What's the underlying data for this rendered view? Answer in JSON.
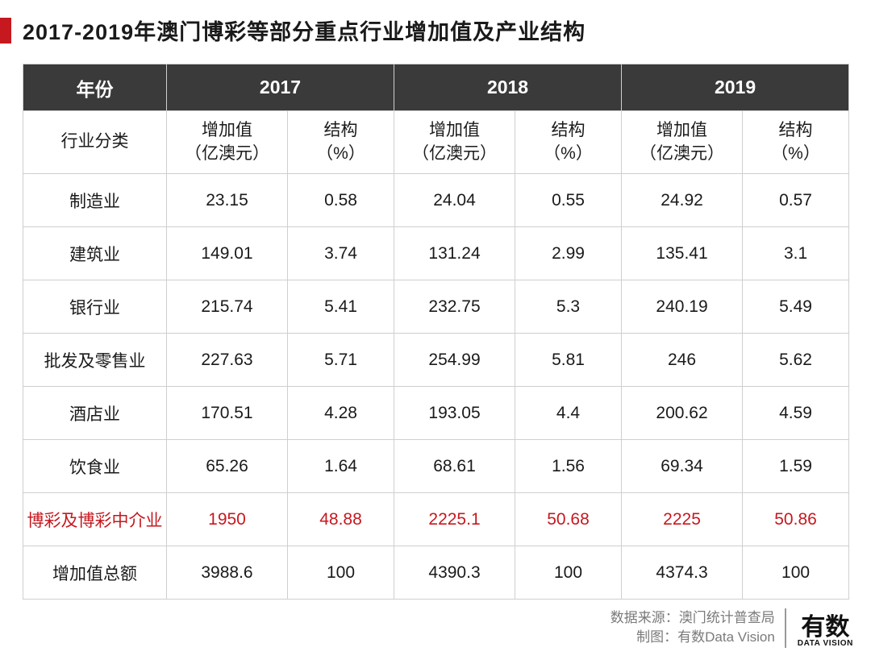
{
  "title": "2017-2019年澳门博彩等部分重点行业增加值及产业结构",
  "table": {
    "type": "table",
    "header_bg": "#3a3a3a",
    "header_text_color": "#ffffff",
    "border_color": "#cfcfcf",
    "highlight_color": "#c6181f",
    "year_label": "年份",
    "category_label": "行业分类",
    "value_header": "增加值\n（亿澳元）",
    "pct_header": "结构\n（%）",
    "years": [
      "2017",
      "2018",
      "2019"
    ],
    "rows": [
      {
        "cat": "制造业",
        "v": [
          "23.15",
          "0.58",
          "24.04",
          "0.55",
          "24.92",
          "0.57"
        ],
        "hl": false
      },
      {
        "cat": "建筑业",
        "v": [
          "149.01",
          "3.74",
          "131.24",
          "2.99",
          "135.41",
          "3.1"
        ],
        "hl": false
      },
      {
        "cat": "银行业",
        "v": [
          "215.74",
          "5.41",
          "232.75",
          "5.3",
          "240.19",
          "5.49"
        ],
        "hl": false
      },
      {
        "cat": "批发及零售业",
        "v": [
          "227.63",
          "5.71",
          "254.99",
          "5.81",
          "246",
          "5.62"
        ],
        "hl": false
      },
      {
        "cat": "酒店业",
        "v": [
          "170.51",
          "4.28",
          "193.05",
          "4.4",
          "200.62",
          "4.59"
        ],
        "hl": false
      },
      {
        "cat": "饮食业",
        "v": [
          "65.26",
          "1.64",
          "68.61",
          "1.56",
          "69.34",
          "1.59"
        ],
        "hl": false
      },
      {
        "cat": "博彩及博彩中介业",
        "v": [
          "1950",
          "48.88",
          "2225.1",
          "50.68",
          "2225",
          "50.86"
        ],
        "hl": true
      },
      {
        "cat": "增加值总额",
        "v": [
          "3988.6",
          "100",
          "4390.3",
          "100",
          "4374.3",
          "100"
        ],
        "hl": false
      }
    ]
  },
  "footer": {
    "source_label": "数据来源：",
    "source_value": "澳门统计普查局",
    "credit_label": "制图：",
    "credit_value": "有数Data Vision",
    "logo_cn": "有数",
    "logo_en": "DATA VISION"
  }
}
